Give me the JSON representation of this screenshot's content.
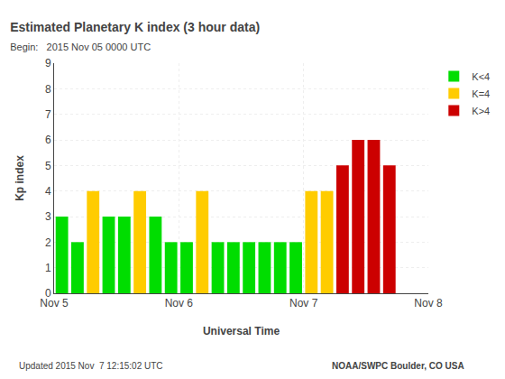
{
  "chart_data": {
    "type": "bar",
    "title": "Estimated Planetary K index (3 hour data)",
    "subtitle": "Begin:   2015 Nov 05 0000 UTC",
    "annotations": [
      "Updated 2015 Nov  7 12:15:02 UTC",
      "NOAA/SWPC Boulder, CO USA"
    ],
    "xlabel": "Universal Time",
    "ylabel": "Kp index",
    "categories": [
      null,
      null,
      null,
      null,
      null,
      null,
      null,
      null,
      null,
      null,
      null,
      null,
      null,
      null,
      null,
      null,
      null,
      null,
      null,
      null,
      null,
      null,
      null,
      null
    ],
    "xlim": [
      -0.5,
      23.5
    ],
    "xticks": [
      {
        "value": -0.5,
        "label": "Nov 5"
      },
      {
        "value": 7.5,
        "label": "Nov 6"
      },
      {
        "value": 15.5,
        "label": "Nov 7"
      },
      {
        "value": 23.5,
        "label": "Nov 8"
      }
    ],
    "series": [
      {
        "name": "K<4",
        "color": "#00dd00",
        "values": [
          3,
          2,
          null,
          3,
          3,
          null,
          3,
          2,
          2,
          null,
          2,
          2,
          2,
          2,
          2,
          2,
          null,
          null,
          null,
          null,
          null,
          null,
          null,
          null
        ]
      },
      {
        "name": "K=4",
        "color": "#ffcc00",
        "values": [
          null,
          null,
          4,
          null,
          null,
          4,
          null,
          null,
          null,
          4,
          null,
          null,
          null,
          null,
          null,
          null,
          4,
          4,
          null,
          null,
          null,
          null,
          null,
          null
        ]
      },
      {
        "name": "K>4",
        "color": "#cc0000",
        "values": [
          null,
          null,
          null,
          null,
          null,
          null,
          null,
          null,
          null,
          null,
          null,
          null,
          null,
          null,
          null,
          null,
          null,
          null,
          5,
          6,
          6,
          5,
          0,
          0
        ]
      }
    ],
    "ylim": [
      0,
      9
    ],
    "yticks": [
      0,
      1,
      2,
      3,
      4,
      5,
      6,
      7,
      8,
      9
    ],
    "grid": true,
    "legend": "upper right"
  }
}
